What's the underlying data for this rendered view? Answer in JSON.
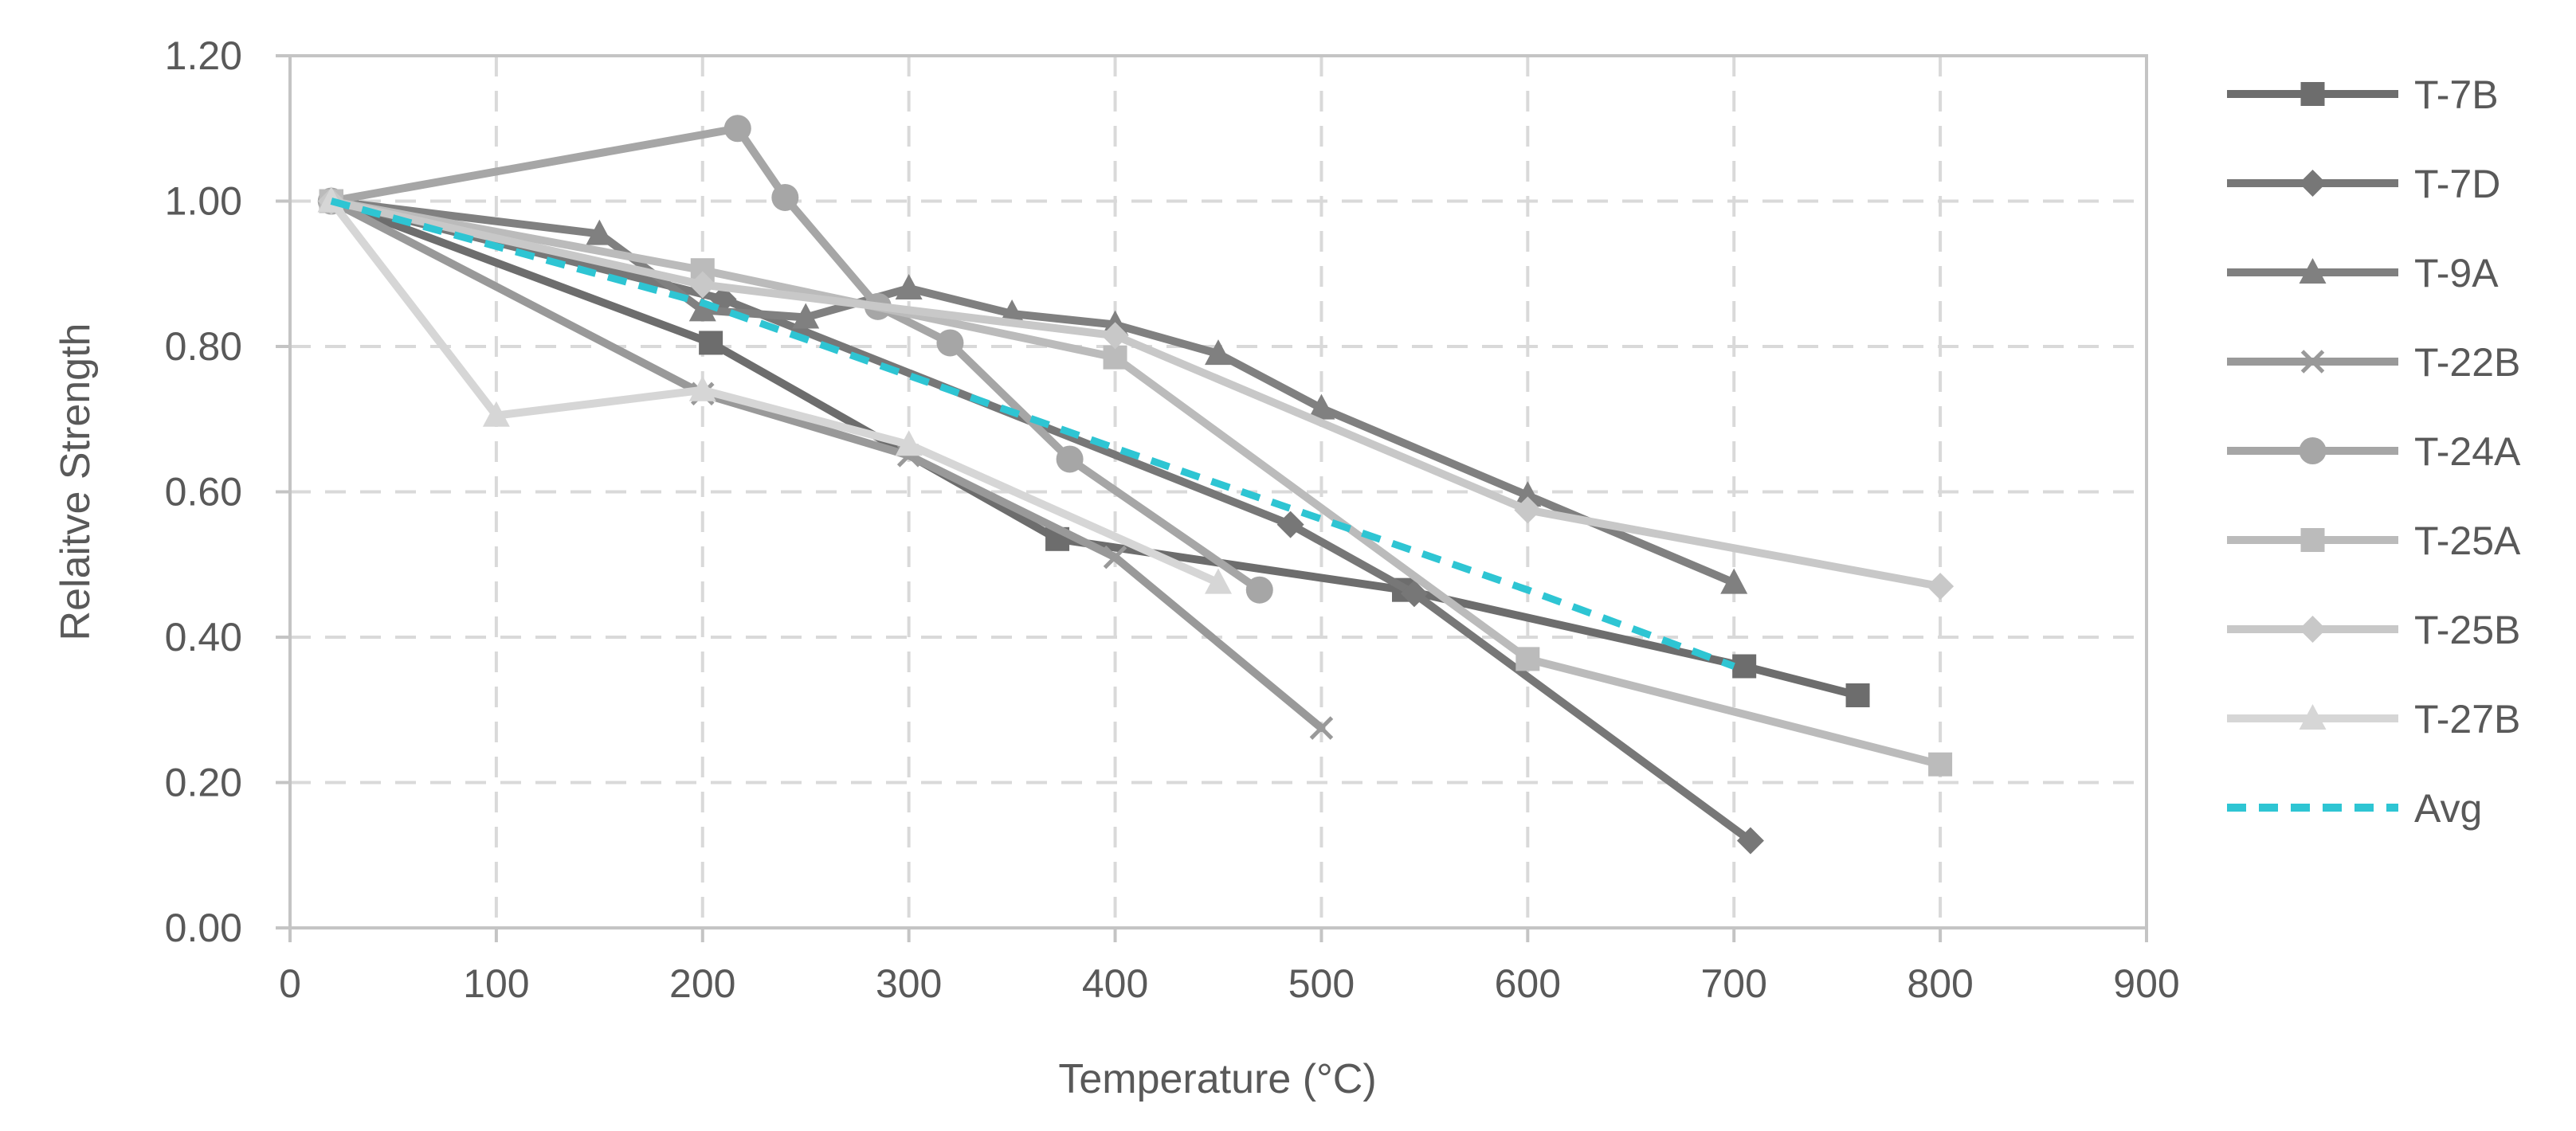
{
  "chart_data": {
    "type": "line",
    "title": "",
    "xlabel": "Temperature (°C)",
    "ylabel": "Relaitve Strength",
    "xlim": [
      0,
      900
    ],
    "ylim": [
      0,
      1.2
    ],
    "x_ticks": [
      0,
      100,
      200,
      300,
      400,
      500,
      600,
      700,
      800,
      900
    ],
    "y_ticks": [
      0,
      0.2,
      0.4,
      0.6,
      0.8,
      1.0,
      1.2
    ],
    "x_tick_labels": [
      "0",
      "100",
      "200",
      "300",
      "400",
      "500",
      "600",
      "700",
      "800",
      "900"
    ],
    "y_tick_labels": [
      "0.00",
      "0.20",
      "0.40",
      "0.60",
      "0.80",
      "1.00",
      "1.20"
    ],
    "grid": true,
    "legend_position": "right",
    "series": [
      {
        "name": "T-7B",
        "marker": "square",
        "color": "#6d6d6d",
        "dashed": false,
        "x": [
          20,
          204,
          372,
          540,
          705,
          760
        ],
        "y": [
          1.0,
          0.805,
          0.535,
          0.465,
          0.36,
          0.32
        ]
      },
      {
        "name": "T-7D",
        "marker": "diamond",
        "color": "#777777",
        "dashed": false,
        "x": [
          20,
          210,
          485,
          545,
          708
        ],
        "y": [
          1.0,
          0.865,
          0.555,
          0.46,
          0.12
        ]
      },
      {
        "name": "T-9A",
        "marker": "triangle",
        "color": "#808080",
        "dashed": false,
        "x": [
          20,
          150,
          200,
          250,
          300,
          350,
          400,
          450,
          500,
          600,
          700
        ],
        "y": [
          1.0,
          0.955,
          0.85,
          0.84,
          0.88,
          0.845,
          0.83,
          0.79,
          0.715,
          0.595,
          0.475
        ]
      },
      {
        "name": "T-22B",
        "marker": "x",
        "color": "#999999",
        "dashed": false,
        "x": [
          20,
          200,
          300,
          400,
          500
        ],
        "y": [
          1.0,
          0.735,
          0.65,
          0.51,
          0.275
        ]
      },
      {
        "name": "T-24A",
        "marker": "circle",
        "color": "#a6a6a6",
        "dashed": false,
        "x": [
          20,
          217,
          240,
          285,
          320,
          378,
          470
        ],
        "y": [
          1.0,
          1.1,
          1.005,
          0.855,
          0.805,
          0.645,
          0.465
        ]
      },
      {
        "name": "T-25A",
        "marker": "square",
        "color": "#bbbbbb",
        "dashed": false,
        "x": [
          20,
          200,
          400,
          600,
          800
        ],
        "y": [
          1.0,
          0.905,
          0.785,
          0.37,
          0.225
        ]
      },
      {
        "name": "T-25B",
        "marker": "diamond",
        "color": "#c8c8c8",
        "dashed": false,
        "x": [
          20,
          200,
          400,
          600,
          800
        ],
        "y": [
          1.0,
          0.885,
          0.815,
          0.575,
          0.47
        ]
      },
      {
        "name": "T-27B",
        "marker": "triangle",
        "color": "#d6d6d6",
        "dashed": false,
        "x": [
          20,
          100,
          200,
          300,
          450
        ],
        "y": [
          1.0,
          0.705,
          0.74,
          0.665,
          0.475
        ]
      },
      {
        "name": "Avg",
        "marker": "none",
        "color": "#2ec5d3",
        "dashed": true,
        "x": [
          20,
          200,
          400,
          600,
          700
        ],
        "y": [
          1.0,
          0.86,
          0.66,
          0.465,
          0.36
        ]
      }
    ]
  }
}
